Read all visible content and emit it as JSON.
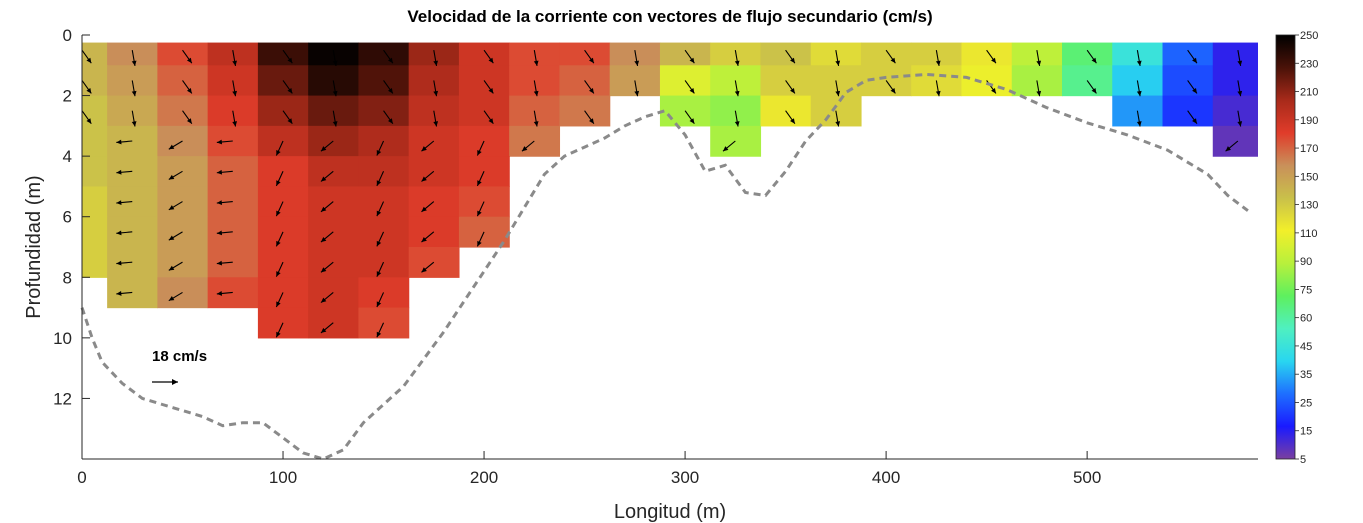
{
  "chart_data": {
    "type": "heatmap",
    "title": "Velocidad de la corriente con vectores de flujo secundario (cm/s)",
    "xlabel": "Longitud (m)",
    "ylabel": "Profundidad (m)",
    "xlim": [
      0,
      585
    ],
    "ylim": [
      14,
      0
    ],
    "y_reversed": true,
    "x_ticks": [
      "0",
      "100",
      "200",
      "300",
      "400",
      "500"
    ],
    "x_tick_values": [
      0,
      100,
      200,
      300,
      400,
      500
    ],
    "y_ticks": [
      "0",
      "2",
      "4",
      "6",
      "8",
      "10",
      "12"
    ],
    "y_tick_values": [
      0,
      2,
      4,
      6,
      8,
      10,
      12
    ],
    "colorbar": {
      "ticks": [
        "250",
        "230",
        "210",
        "190",
        "170",
        "150",
        "130",
        "110",
        "90",
        "75",
        "60",
        "45",
        "35",
        "25",
        "15",
        "5"
      ],
      "tick_values": [
        250,
        230,
        210,
        190,
        170,
        150,
        130,
        110,
        90,
        75,
        60,
        45,
        35,
        25,
        15,
        5
      ],
      "colors": [
        "#7a3fa0",
        "#1a1aff",
        "#1e6fff",
        "#29d6f0",
        "#4ff0c0",
        "#5ef05e",
        "#b8f03c",
        "#f2ef2a",
        "#c9c04a",
        "#c9905a",
        "#e03c2a",
        "#a82a1a",
        "#4a1208",
        "#000000"
      ]
    },
    "scale_vector": {
      "label": "18 cm/s",
      "value": 18
    },
    "bottom_profile": {
      "x": [
        0,
        5,
        10,
        20,
        30,
        40,
        50,
        60,
        70,
        80,
        90,
        100,
        110,
        120,
        130,
        140,
        150,
        160,
        170,
        180,
        190,
        200,
        210,
        220,
        230,
        240,
        250,
        260,
        270,
        280,
        290,
        300,
        310,
        320,
        330,
        340,
        350,
        360,
        370,
        380,
        390,
        400,
        420,
        440,
        460,
        480,
        500,
        520,
        540,
        560,
        570,
        580
      ],
      "y": [
        9.0,
        10.0,
        10.8,
        11.5,
        12.0,
        12.2,
        12.4,
        12.6,
        12.9,
        12.8,
        12.8,
        13.3,
        13.8,
        14.0,
        13.7,
        12.8,
        12.2,
        11.6,
        10.7,
        9.8,
        8.8,
        7.8,
        6.8,
        5.7,
        4.6,
        4.0,
        3.7,
        3.4,
        3.0,
        2.7,
        2.5,
        3.3,
        4.5,
        4.3,
        5.2,
        5.3,
        4.5,
        3.5,
        2.8,
        1.9,
        1.5,
        1.4,
        1.3,
        1.4,
        1.8,
        2.4,
        2.9,
        3.3,
        3.8,
        4.6,
        5.3,
        5.8
      ]
    },
    "velocity_grid": {
      "x": [
        0,
        25,
        50,
        75,
        100,
        125,
        150,
        175,
        200,
        225,
        250,
        275,
        300,
        325,
        350,
        375,
        400,
        425,
        450,
        475,
        500,
        525,
        550,
        575
      ],
      "y": [
        0.5,
        1.5,
        2.5,
        3.5,
        4.5,
        5.5,
        6.5,
        7.5,
        8.5,
        9.5
      ],
      "values": [
        [
          160,
          175,
          190,
          205,
          235,
          248,
          238,
          215,
          200,
          190,
          190,
          175,
          160,
          150,
          155,
          145,
          150,
          150,
          140,
          120,
          95,
          70,
          40,
          20
        ],
        [
          160,
          170,
          185,
          200,
          225,
          240,
          230,
          210,
          200,
          190,
          185,
          170,
          130,
          120,
          150,
          150,
          150,
          145,
          135,
          115,
          90,
          60,
          35,
          20
        ],
        [
          155,
          165,
          180,
          195,
          215,
          225,
          220,
          205,
          200,
          185,
          180,
          0,
          115,
          110,
          140,
          150,
          0,
          0,
          0,
          0,
          0,
          50,
          30,
          15
        ],
        [
          155,
          160,
          175,
          190,
          205,
          215,
          210,
          200,
          195,
          180,
          0,
          0,
          0,
          115,
          0,
          0,
          0,
          0,
          0,
          0,
          0,
          0,
          0,
          10
        ],
        [
          155,
          160,
          170,
          185,
          195,
          205,
          205,
          200,
          195,
          0,
          0,
          0,
          0,
          0,
          0,
          0,
          0,
          0,
          0,
          0,
          0,
          0,
          0,
          0
        ],
        [
          150,
          160,
          170,
          185,
          195,
          200,
          200,
          195,
          190,
          0,
          0,
          0,
          0,
          0,
          0,
          0,
          0,
          0,
          0,
          0,
          0,
          0,
          0,
          0
        ],
        [
          150,
          160,
          170,
          185,
          195,
          200,
          200,
          195,
          185,
          0,
          0,
          0,
          0,
          0,
          0,
          0,
          0,
          0,
          0,
          0,
          0,
          0,
          0,
          0
        ],
        [
          150,
          160,
          170,
          185,
          195,
          200,
          200,
          190,
          0,
          0,
          0,
          0,
          0,
          0,
          0,
          0,
          0,
          0,
          0,
          0,
          0,
          0,
          0,
          0
        ],
        [
          0,
          160,
          175,
          190,
          195,
          200,
          195,
          0,
          0,
          0,
          0,
          0,
          0,
          0,
          0,
          0,
          0,
          0,
          0,
          0,
          0,
          0,
          0,
          0
        ],
        [
          0,
          0,
          0,
          0,
          195,
          200,
          190,
          0,
          0,
          0,
          0,
          0,
          0,
          0,
          0,
          0,
          0,
          0,
          0,
          0,
          0,
          0,
          0,
          0
        ]
      ]
    }
  }
}
